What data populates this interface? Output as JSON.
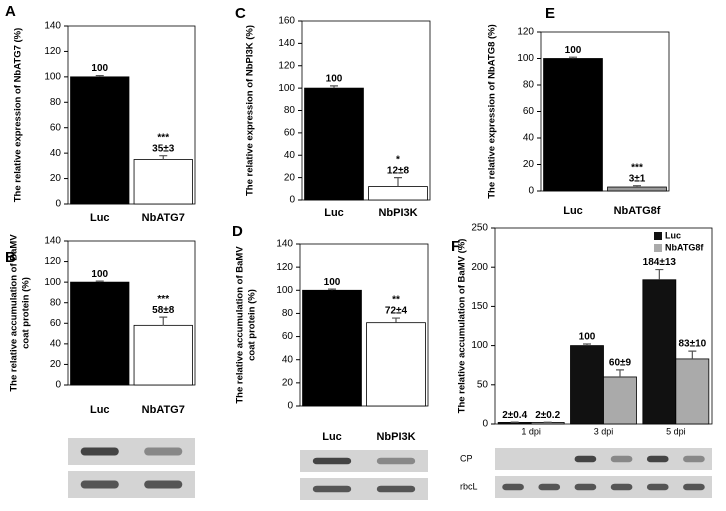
{
  "chart_data": [
    {
      "type": "bar",
      "label": "A",
      "ylabel": [
        "The relative expression of NbATG7 (%)"
      ],
      "categories": [
        "Luc",
        "NbATG7"
      ],
      "values": [
        100,
        35
      ],
      "errors": [
        1,
        3
      ],
      "value_labels": [
        "100",
        "35±3"
      ],
      "significance": [
        null,
        "***"
      ],
      "colors": [
        "#000000",
        "#ffffff"
      ],
      "ylim": [
        0,
        140
      ],
      "yticks": [
        0,
        20,
        40,
        60,
        80,
        100,
        120,
        140
      ]
    },
    {
      "type": "bar",
      "label": "B",
      "ylabel": [
        "The relative accumulation of BaMV",
        "coat protein (%)"
      ],
      "categories": [
        "Luc",
        "NbATG7"
      ],
      "values": [
        100,
        58
      ],
      "errors": [
        1,
        8
      ],
      "value_labels": [
        "100",
        "58±8"
      ],
      "significance": [
        null,
        "***"
      ],
      "colors": [
        "#000000",
        "#ffffff"
      ],
      "ylim": [
        0,
        140
      ],
      "yticks": [
        0,
        20,
        40,
        60,
        80,
        100,
        120,
        140
      ]
    },
    {
      "type": "bar",
      "label": "C",
      "ylabel": [
        "The relative expression of NbPI3K (%)"
      ],
      "categories": [
        "Luc",
        "NbPI3K"
      ],
      "values": [
        100,
        12
      ],
      "errors": [
        2,
        8
      ],
      "value_labels": [
        "100",
        "12±8"
      ],
      "significance": [
        null,
        "*"
      ],
      "colors": [
        "#000000",
        "#ffffff"
      ],
      "ylim": [
        0,
        160
      ],
      "yticks": [
        0,
        20,
        40,
        60,
        80,
        100,
        120,
        140,
        160
      ]
    },
    {
      "type": "bar",
      "label": "D",
      "ylabel": [
        "The relative accumulation of BaMV",
        "coat protein (%)"
      ],
      "categories": [
        "Luc",
        "NbPI3K"
      ],
      "values": [
        100,
        72
      ],
      "errors": [
        1,
        4
      ],
      "value_labels": [
        "100",
        "72±4"
      ],
      "significance": [
        null,
        "**"
      ],
      "colors": [
        "#000000",
        "#ffffff"
      ],
      "ylim": [
        0,
        140
      ],
      "yticks": [
        0,
        20,
        40,
        60,
        80,
        100,
        120,
        140
      ]
    },
    {
      "type": "bar",
      "label": "E",
      "ylabel": [
        "The relative expression of NbATG8 (%)"
      ],
      "categories": [
        "Luc",
        "NbATG8f"
      ],
      "values": [
        100,
        3
      ],
      "errors": [
        1,
        1
      ],
      "value_labels": [
        "100",
        "3±1"
      ],
      "significance": [
        null,
        "***"
      ],
      "colors": [
        "#000000",
        "#999999"
      ],
      "ylim": [
        0,
        120
      ],
      "yticks": [
        0,
        20,
        40,
        60,
        80,
        100,
        120
      ]
    },
    {
      "type": "grouped_bar",
      "label": "F",
      "ylabel": [
        "The relative accumulation of BaMV (%)"
      ],
      "categories": [
        "1 dpi",
        "3 dpi",
        "5 dpi"
      ],
      "series": [
        {
          "name": "Luc",
          "color": "#111111",
          "values": [
            2,
            100,
            184
          ],
          "errors": [
            0.4,
            2,
            13
          ],
          "value_labels": [
            "2±0.4",
            "100",
            "184±13"
          ]
        },
        {
          "name": "NbATG8f",
          "color": "#aaaaaa",
          "values": [
            2,
            60,
            83
          ],
          "errors": [
            0.2,
            9,
            10
          ],
          "value_labels": [
            "2±0.2",
            "60±9",
            "83±10"
          ]
        }
      ],
      "ylim": [
        0,
        250
      ],
      "yticks": [
        0,
        50,
        100,
        150,
        200,
        250
      ],
      "legend": "top-right",
      "blot_labels": [
        "CP",
        "rbcL"
      ]
    }
  ]
}
